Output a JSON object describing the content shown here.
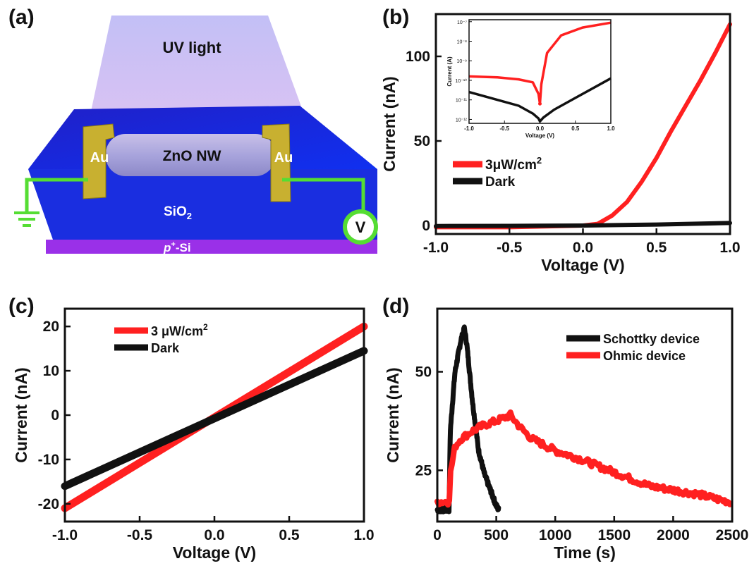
{
  "panels": {
    "a": {
      "letter": "(a)",
      "labels": {
        "uv": "UV light",
        "au_left": "Au",
        "au_right": "Au",
        "nw": "ZnO NW",
        "oxide": "SiO",
        "oxide_sub": "2",
        "substrate_p": "p",
        "substrate_plus": "+",
        "substrate_si": "-Si",
        "meter": "V"
      }
    },
    "b": {
      "letter": "(b)"
    },
    "c": {
      "letter": "(c)"
    },
    "d": {
      "letter": "(d)"
    }
  },
  "colors": {
    "red": "#ff2020",
    "black": "#111111",
    "green": "#55dd33",
    "gold": "#c8b030",
    "blue": "#1a2ee0"
  },
  "chart_data": [
    {
      "id": "b",
      "type": "line",
      "xlabel": "Voltage (V)",
      "ylabel": "Current (nA)",
      "xlim": [
        -1.0,
        1.0
      ],
      "ylim": [
        -5,
        125
      ],
      "xticks": [
        "-1.0",
        "-0.5",
        "0.0",
        "0.5",
        "1.0"
      ],
      "yticks": [
        "0",
        "50",
        "100"
      ],
      "legend": "center-left",
      "series": [
        {
          "name": "3μW/cm",
          "name_sup": "2",
          "color": "#ff2020",
          "x": [
            -1.0,
            -0.5,
            0.0,
            0.1,
            0.2,
            0.3,
            0.4,
            0.5,
            0.6,
            0.7,
            0.8,
            0.9,
            1.0
          ],
          "y": [
            -1,
            -1,
            0,
            1,
            6,
            14,
            26,
            40,
            56,
            71,
            86,
            102,
            119
          ]
        },
        {
          "name": "Dark",
          "color": "#111111",
          "x": [
            -1.0,
            -0.5,
            0.0,
            0.5,
            1.0
          ],
          "y": [
            -0.3,
            -0.2,
            0,
            0.6,
            1.5
          ]
        }
      ],
      "inset": {
        "xlabel": "Voltage (V)",
        "ylabel": "Current (A)",
        "xlim": [
          -1.0,
          1.0
        ],
        "xticks": [
          "-1.0",
          "-0.5",
          "0.0",
          "0.5",
          "1.0"
        ],
        "yticks": [
          "10⁻⁷",
          "10⁻⁸",
          "10⁻⁹",
          "10⁻¹⁰",
          "10⁻¹¹",
          "10⁻¹²"
        ],
        "log_y": true,
        "series": [
          {
            "name": "3μW/cm2",
            "color": "#ff2020",
            "x": [
              -1.0,
              -0.6,
              -0.3,
              -0.1,
              -0.02,
              0.0,
              0.02,
              0.1,
              0.3,
              0.6,
              1.0
            ],
            "log10y": [
              -9.8,
              -9.85,
              -9.95,
              -10.1,
              -10.7,
              -11.2,
              -10.2,
              -8.6,
              -7.7,
              -7.3,
              -7.05
            ]
          },
          {
            "name": "Dark",
            "color": "#111111",
            "x": [
              -1.0,
              -0.6,
              -0.3,
              -0.1,
              -0.02,
              0.0,
              0.05,
              0.2,
              0.5,
              1.0
            ],
            "log10y": [
              -10.6,
              -11.0,
              -11.3,
              -11.7,
              -11.95,
              -12.1,
              -11.9,
              -11.5,
              -10.9,
              -9.9
            ]
          }
        ]
      }
    },
    {
      "id": "c",
      "type": "line",
      "xlabel": "Voltage (V)",
      "ylabel": "Current (nA)",
      "xlim": [
        -1.0,
        1.0
      ],
      "ylim": [
        -24,
        24
      ],
      "xticks": [
        "-1.0",
        "-0.5",
        "0.0",
        "0.5",
        "1.0"
      ],
      "yticks": [
        "-20",
        "-10",
        "0",
        "10",
        "20"
      ],
      "legend": "top-left",
      "series": [
        {
          "name": "3 μW/cm",
          "name_sup": "2",
          "color": "#ff2020",
          "x": [
            -1.0,
            1.0
          ],
          "y": [
            -21,
            20
          ]
        },
        {
          "name": "Dark",
          "color": "#111111",
          "x": [
            -1.0,
            1.0
          ],
          "y": [
            -16,
            14.5
          ]
        }
      ]
    },
    {
      "id": "d",
      "type": "line",
      "xlabel": "Time (s)",
      "ylabel": "Current (nA)",
      "xlim": [
        0,
        2500
      ],
      "ylim": [
        12,
        66
      ],
      "xticks": [
        "0",
        "500",
        "1000",
        "1500",
        "2000",
        "2500"
      ],
      "yticks": [
        "25",
        "50"
      ],
      "legend": "top-right",
      "series": [
        {
          "name": "Schottky device",
          "color": "#111111",
          "x": [
            0,
            100,
            110,
            150,
            200,
            230,
            250,
            300,
            350,
            400,
            450,
            500,
            520
          ],
          "y": [
            15,
            15,
            35,
            50,
            58,
            61,
            57,
            42,
            30,
            24,
            20,
            16,
            15
          ]
        },
        {
          "name": "Ohmic device",
          "color": "#ff2020",
          "x": [
            0,
            100,
            110,
            150,
            200,
            300,
            400,
            500,
            620,
            700,
            800,
            1000,
            1200,
            1500,
            1800,
            2000,
            2200,
            2400,
            2480
          ],
          "y": [
            17,
            17,
            24,
            31,
            33,
            35,
            36.5,
            37.5,
            39,
            36,
            33,
            30,
            28,
            24.5,
            21,
            20,
            19,
            17.5,
            17
          ]
        }
      ]
    }
  ]
}
